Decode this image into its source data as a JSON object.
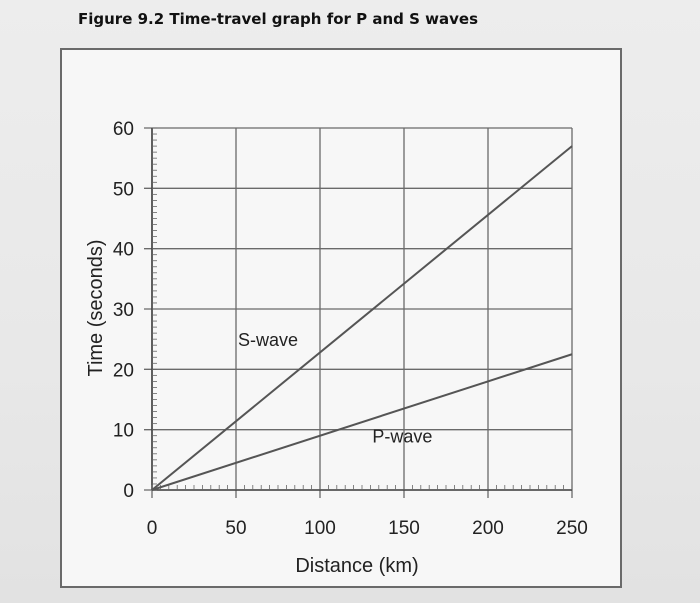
{
  "figure": {
    "caption_lead": "Figure 9.2",
    "caption_rest": " Time-travel graph for P and S waves"
  },
  "chart_data": {
    "type": "line",
    "xlabel": "Distance (km)",
    "ylabel": "Time (seconds)",
    "xlim": [
      0,
      250
    ],
    "ylim": [
      0,
      60
    ],
    "x_ticks": [
      0,
      50,
      100,
      150,
      200,
      250
    ],
    "y_ticks": [
      0,
      10,
      20,
      30,
      40,
      50,
      60
    ],
    "grid": true,
    "series": [
      {
        "name": "S-wave",
        "x": [
          0,
          250
        ],
        "y": [
          0,
          57
        ],
        "color": "#555555"
      },
      {
        "name": "P-wave",
        "x": [
          0,
          250
        ],
        "y": [
          0,
          22.5
        ],
        "color": "#555555"
      }
    ],
    "annotations": [
      {
        "text": "S-wave",
        "x": 50,
        "y": 25
      },
      {
        "text": "P-wave",
        "x": 130,
        "y": 9
      }
    ]
  }
}
